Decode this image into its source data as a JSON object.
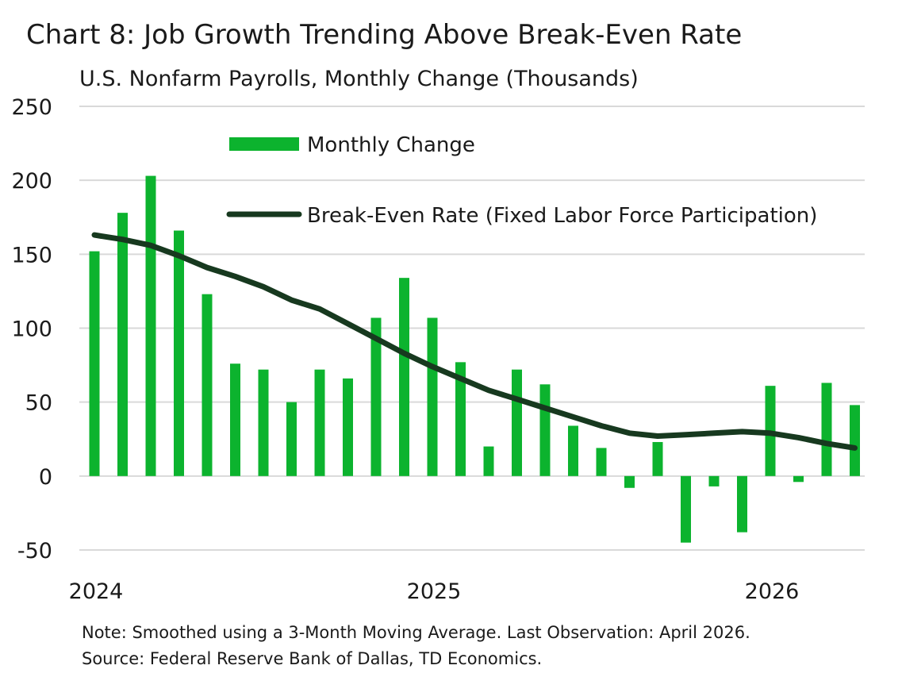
{
  "title": "Chart 8: Job Growth Trending Above Break-Even Rate",
  "subtitle": "U.S. Nonfarm Payrolls, Monthly Change (Thousands)",
  "notes": {
    "note": "Note: Smoothed using a 3-Month Moving Average. Last Observation: April 2026.",
    "source": "Source: Federal Reserve Bank of Dallas, TD Economics."
  },
  "colors": {
    "bar": "#0cb32e",
    "line": "#17391f",
    "grid": "#d9d9d9"
  },
  "chart_data": {
    "type": "bar",
    "x": [
      "2024-01",
      "2024-02",
      "2024-03",
      "2024-04",
      "2024-05",
      "2024-06",
      "2024-07",
      "2024-08",
      "2024-09",
      "2024-10",
      "2024-11",
      "2024-12",
      "2025-01",
      "2025-02",
      "2025-03",
      "2025-04",
      "2025-05",
      "2025-06",
      "2025-07",
      "2025-08",
      "2025-09",
      "2025-10",
      "2025-11",
      "2025-12",
      "2026-01",
      "2026-02",
      "2026-03",
      "2026-04"
    ],
    "x_tick_labels": [
      {
        "label": "2024",
        "index": 0
      },
      {
        "label": "2025",
        "index": 12
      },
      {
        "label": "2026",
        "index": 24
      }
    ],
    "ylim": [
      -50,
      250
    ],
    "yticks": [
      -50,
      0,
      50,
      100,
      150,
      200,
      250
    ],
    "grid": true,
    "legend_position": "top-center",
    "series": [
      {
        "name": "Monthly Change",
        "kind": "bar",
        "values": [
          152,
          178,
          203,
          166,
          123,
          76,
          72,
          50,
          72,
          66,
          107,
          134,
          107,
          77,
          20,
          72,
          62,
          34,
          19,
          -8,
          23,
          -45,
          -7,
          -38,
          61,
          -4,
          63,
          48
        ]
      },
      {
        "name": "Break-Even Rate (Fixed Labor Force Participation)",
        "kind": "line",
        "values": [
          163,
          160,
          156,
          149,
          141,
          135,
          128,
          119,
          113,
          103,
          93,
          83,
          74,
          66,
          58,
          52,
          46,
          40,
          34,
          29,
          27,
          28,
          29,
          30,
          29,
          26,
          22,
          19
        ]
      }
    ]
  }
}
